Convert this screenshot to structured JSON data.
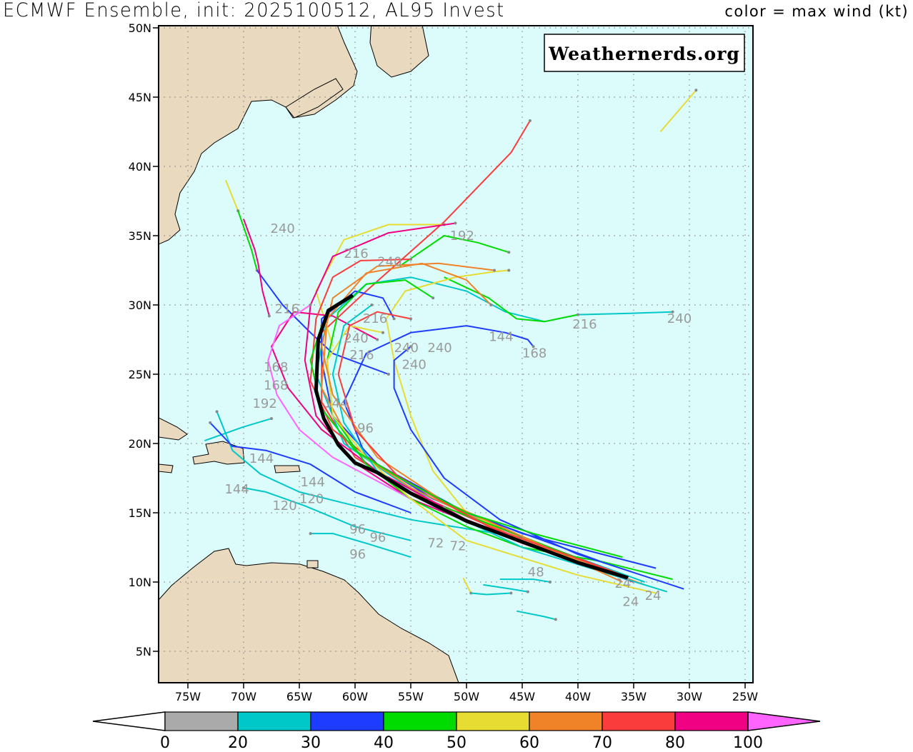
{
  "header": {
    "title": "ECMWF Ensemble, init: 2025100512, AL95 Invest",
    "subtitle": "color = max wind (kt)"
  },
  "watermark": "Weathernerds.org",
  "map": {
    "lat_labels": [
      "50N",
      "45N",
      "40N",
      "35N",
      "30N",
      "25N",
      "20N",
      "15N",
      "10N",
      "5N"
    ],
    "lat_values": [
      50,
      45,
      40,
      35,
      30,
      25,
      20,
      15,
      10,
      5
    ],
    "lon_labels": [
      "75W",
      "70W",
      "65W",
      "60W",
      "55W",
      "50W",
      "45W",
      "40W",
      "35W",
      "30W",
      "25W"
    ],
    "lon_values": [
      -75,
      -70,
      -65,
      -60,
      -55,
      -50,
      -45,
      -40,
      -35,
      -30,
      -25
    ],
    "extent": {
      "lon": [
        -77.6,
        -24.3
      ],
      "lat": [
        2.5,
        49.9
      ]
    },
    "ocean_color": "#dcfcfc",
    "land_color": "#e8d9bf",
    "grid": "dotted"
  },
  "colorbar": {
    "labels": [
      "0",
      "20",
      "30",
      "40",
      "50",
      "60",
      "70",
      "80",
      "100"
    ],
    "colors": [
      "#aaaaaa",
      "#00c8c8",
      "#1e3cff",
      "#00dc00",
      "#e6dc32",
      "#f08228",
      "#fa3c3c",
      "#f00082"
    ],
    "under_color": "#ffffff",
    "over_color": "#ff64ff"
  },
  "mean_track": {
    "color": "#000000",
    "points": [
      [
        -35.5,
        10.3
      ],
      [
        -40,
        11.4
      ],
      [
        -45,
        12.9
      ],
      [
        -50,
        14.4
      ],
      [
        -55,
        16.4
      ],
      [
        -58,
        17.9
      ],
      [
        -60,
        18.6
      ],
      [
        -61.5,
        19.9
      ],
      [
        -62.8,
        21.8
      ],
      [
        -63.5,
        23.8
      ],
      [
        -63.3,
        27.5
      ],
      [
        -62.4,
        29.6
      ],
      [
        -60.2,
        30.7
      ]
    ]
  },
  "tracks": [
    {
      "color": "#fa3c3c",
      "points": [
        [
          -35.5,
          10.3
        ],
        [
          -45,
          13
        ],
        [
          -55,
          16.5
        ],
        [
          -60,
          19
        ],
        [
          -63,
          23
        ],
        [
          -63,
          28
        ],
        [
          -59,
          31
        ],
        [
          -52,
          36
        ],
        [
          -46,
          41
        ],
        [
          -44.3,
          43.3
        ]
      ]
    },
    {
      "color": "#e6dc32",
      "points": [
        [
          -32.6,
          42.5
        ],
        [
          -29.4,
          45.5
        ]
      ]
    },
    {
      "color": "#e6dc32",
      "points": [
        [
          -71.6,
          39
        ],
        [
          -70.5,
          36.8
        ]
      ]
    },
    {
      "color": "#00dc00",
      "points": [
        [
          -70.5,
          36.8
        ],
        [
          -69.3,
          34
        ],
        [
          -68.8,
          32.5
        ]
      ]
    },
    {
      "color": "#1e3cff",
      "points": [
        [
          -68.8,
          32.5
        ],
        [
          -66.5,
          30
        ],
        [
          -64,
          28
        ],
        [
          -62,
          26.5
        ],
        [
          -57,
          25
        ]
      ]
    },
    {
      "color": "#00c8c8",
      "points": [
        [
          -34,
          10
        ],
        [
          -45,
          13.2
        ],
        [
          -55,
          16.7
        ],
        [
          -61,
          20
        ],
        [
          -63.5,
          25
        ],
        [
          -62.5,
          29
        ],
        [
          -59,
          31.5
        ],
        [
          -55,
          32
        ],
        [
          -50,
          31
        ],
        [
          -46.5,
          29.5
        ],
        [
          -43,
          28.8
        ],
        [
          -40,
          29.3
        ],
        [
          -35,
          29.4
        ],
        [
          -31.5,
          29.5
        ]
      ]
    },
    {
      "color": "#00dc00",
      "points": [
        [
          -52,
          32
        ],
        [
          -48,
          30.5
        ],
        [
          -45.5,
          29
        ],
        [
          -43,
          28.8
        ],
        [
          -40,
          29.3
        ]
      ]
    },
    {
      "color": "#1e3cff",
      "points": [
        [
          -33,
          11
        ],
        [
          -45,
          13.5
        ],
        [
          -53,
          16
        ],
        [
          -59,
          19
        ],
        [
          -61,
          23
        ],
        [
          -59,
          26.5
        ],
        [
          -55,
          28
        ],
        [
          -50,
          28.5
        ],
        [
          -46.5,
          28
        ],
        [
          -44.5,
          27.5
        ],
        [
          -44,
          27
        ]
      ]
    },
    {
      "color": "#e6dc32",
      "points": [
        [
          -35,
          10
        ],
        [
          -40,
          11.6
        ],
        [
          -45,
          13.2
        ],
        [
          -50,
          15
        ],
        [
          -53,
          18
        ],
        [
          -55,
          22
        ],
        [
          -56.5,
          26
        ],
        [
          -57.2,
          29
        ],
        [
          -55.5,
          31
        ],
        [
          -51,
          32
        ],
        [
          -47.5,
          32.4
        ],
        [
          -46.2,
          32.5
        ]
      ]
    },
    {
      "color": "#00dc00",
      "points": [
        [
          -56,
          32.8
        ],
        [
          -52,
          35
        ],
        [
          -49,
          34.5
        ],
        [
          -46.2,
          33.8
        ]
      ]
    },
    {
      "color": "#e6dc32",
      "points": [
        [
          -62,
          27
        ],
        [
          -63.5,
          31
        ],
        [
          -61,
          34.7
        ],
        [
          -57,
          35.8
        ],
        [
          -52,
          35.8
        ]
      ]
    },
    {
      "color": "#f00082",
      "points": [
        [
          -35,
          10
        ],
        [
          -45,
          12.8
        ],
        [
          -55,
          16
        ],
        [
          -60,
          18.6
        ],
        [
          -63.5,
          22
        ],
        [
          -64.5,
          26
        ],
        [
          -64,
          30
        ],
        [
          -62,
          33.5
        ],
        [
          -57,
          35.2
        ],
        [
          -51,
          35.9
        ]
      ]
    },
    {
      "color": "#00c8c8",
      "points": [
        [
          -45,
          13.2
        ],
        [
          -55,
          14.5
        ],
        [
          -60,
          15.5
        ],
        [
          -65,
          16.5
        ],
        [
          -68.5,
          17.8
        ],
        [
          -71,
          19.5
        ],
        [
          -72.4,
          22.3
        ]
      ]
    },
    {
      "color": "#00c8c8",
      "points": [
        [
          -73.5,
          20.2
        ],
        [
          -70,
          21.2
        ],
        [
          -67.5,
          21.8
        ]
      ]
    },
    {
      "color": "#1e3cff",
      "points": [
        [
          -55,
          15
        ],
        [
          -60,
          16.5
        ],
        [
          -64,
          18.5
        ],
        [
          -68,
          19.5
        ],
        [
          -71,
          19.8
        ],
        [
          -73,
          21.5
        ]
      ]
    },
    {
      "color": "#00c8c8",
      "points": [
        [
          -55,
          13
        ],
        [
          -60,
          14
        ],
        [
          -64.5,
          15.5
        ],
        [
          -68,
          16.5
        ],
        [
          -70,
          16.8
        ]
      ]
    },
    {
      "color": "#00c8c8",
      "points": [
        [
          -55,
          11.8
        ],
        [
          -59,
          12.8
        ],
        [
          -62,
          13.5
        ],
        [
          -64,
          13.5
        ]
      ]
    },
    {
      "color": "#e6dc32",
      "points": [
        [
          -50.3,
          10.3
        ],
        [
          -49.6,
          9.2
        ]
      ]
    },
    {
      "color": "#00c8c8",
      "points": [
        [
          -49.6,
          9.2
        ],
        [
          -48.2,
          9.1
        ],
        [
          -46,
          9.2
        ]
      ]
    },
    {
      "color": "#00c8c8",
      "points": [
        [
          -48.5,
          9.8
        ],
        [
          -46,
          9.5
        ],
        [
          -44.5,
          9.3
        ]
      ]
    },
    {
      "color": "#00c8c8",
      "points": [
        [
          -45.5,
          7.9
        ],
        [
          -43,
          7.5
        ],
        [
          -42,
          7.3
        ]
      ]
    },
    {
      "color": "#00c8c8",
      "points": [
        [
          -47,
          10.2
        ],
        [
          -44,
          10.2
        ],
        [
          -42.5,
          10
        ]
      ]
    },
    {
      "color": "#f00082",
      "points": [
        [
          -40,
          11.5
        ],
        [
          -50,
          14.5
        ],
        [
          -58,
          18
        ],
        [
          -63,
          21
        ],
        [
          -66,
          24
        ],
        [
          -67.5,
          27
        ],
        [
          -65.5,
          29.5
        ],
        [
          -62,
          29.2
        ],
        [
          -58,
          27.5
        ]
      ]
    },
    {
      "color": "#1e3cff",
      "points": [
        [
          -38,
          11.5
        ],
        [
          -50,
          15
        ],
        [
          -58,
          18.5
        ],
        [
          -62,
          22
        ],
        [
          -63,
          26
        ],
        [
          -63,
          29
        ],
        [
          -60,
          31
        ],
        [
          -57.5,
          30.5
        ],
        [
          -56.5,
          29
        ]
      ]
    },
    {
      "color": "#fa3c3c",
      "points": [
        [
          -36,
          10.5
        ],
        [
          -50,
          14.8
        ],
        [
          -58,
          18.5
        ],
        [
          -62,
          21
        ],
        [
          -64,
          24.5
        ],
        [
          -63.5,
          29
        ],
        [
          -62,
          32
        ],
        [
          -59.5,
          33.2
        ],
        [
          -55,
          33.3
        ]
      ]
    },
    {
      "color": "#f08228",
      "points": [
        [
          -34,
          9.8
        ],
        [
          -45,
          13
        ],
        [
          -55,
          16.8
        ],
        [
          -60,
          19.5
        ],
        [
          -63,
          24
        ],
        [
          -62.5,
          29
        ],
        [
          -59,
          32.3
        ],
        [
          -54,
          33
        ],
        [
          -50,
          31.8
        ],
        [
          -47.8,
          30
        ]
      ]
    },
    {
      "color": "#ff64ff",
      "points": [
        [
          -55,
          16
        ],
        [
          -62,
          19
        ],
        [
          -65,
          21
        ],
        [
          -67,
          23.5
        ],
        [
          -67.8,
          26
        ],
        [
          -66.8,
          28.5
        ],
        [
          -64,
          30
        ]
      ]
    },
    {
      "color": "#f00082",
      "points": [
        [
          -70,
          36.2
        ],
        [
          -69,
          34
        ],
        [
          -68.7,
          33
        ],
        [
          -68.3,
          31
        ],
        [
          -67.7,
          29.2
        ]
      ]
    },
    {
      "color": "#00dc00",
      "points": [
        [
          -31.5,
          10.2
        ],
        [
          -38,
          11.5
        ],
        [
          -45,
          12.5
        ],
        [
          -50,
          14
        ],
        [
          -55,
          16
        ],
        [
          -59,
          18.5
        ],
        [
          -62,
          22
        ],
        [
          -62.5,
          26
        ],
        [
          -61.5,
          29.5
        ],
        [
          -59,
          31.5
        ],
        [
          -55.5,
          31.8
        ],
        [
          -53,
          30.5
        ]
      ]
    },
    {
      "color": "#00dc00",
      "points": [
        [
          -40,
          11.7
        ],
        [
          -46,
          13.6
        ],
        [
          -52,
          15.4
        ]
      ]
    },
    {
      "color": "#e6dc32",
      "points": [
        [
          -33,
          9.2
        ],
        [
          -40,
          10.5
        ],
        [
          -50,
          13
        ],
        [
          -55,
          16
        ],
        [
          -59,
          19
        ],
        [
          -62,
          22
        ],
        [
          -62.5,
          26
        ],
        [
          -60.5,
          28.5
        ],
        [
          -57.5,
          28
        ]
      ]
    },
    {
      "color": "#1e3cff",
      "points": [
        [
          -30.5,
          9.5
        ],
        [
          -40,
          12
        ],
        [
          -47,
          14.5
        ],
        [
          -52,
          17.5
        ],
        [
          -55,
          21
        ],
        [
          -56.5,
          24
        ],
        [
          -56.5,
          26
        ],
        [
          -55,
          27
        ]
      ]
    },
    {
      "color": "#00c8c8",
      "points": [
        [
          -32,
          9.3
        ],
        [
          -45,
          12.5
        ],
        [
          -53,
          15.5
        ],
        [
          -58,
          18
        ],
        [
          -61,
          21.5
        ],
        [
          -62,
          25
        ],
        [
          -61,
          28.5
        ],
        [
          -58.5,
          30
        ]
      ]
    },
    {
      "color": "#f08228",
      "points": [
        [
          -36,
          10
        ],
        [
          -45,
          13.3
        ],
        [
          -52,
          15.8
        ],
        [
          -58,
          19
        ],
        [
          -62,
          23.5
        ],
        [
          -63,
          27
        ],
        [
          -62,
          30.5
        ],
        [
          -58,
          32.8
        ],
        [
          -52.5,
          33
        ],
        [
          -47.5,
          32.5
        ]
      ]
    },
    {
      "color": "#fa3c3c",
      "points": [
        [
          -37,
          10.8
        ],
        [
          -48,
          14
        ],
        [
          -56,
          17.5
        ],
        [
          -60,
          21
        ],
        [
          -61.5,
          25
        ],
        [
          -60.5,
          28.5
        ],
        [
          -58,
          29.5
        ],
        [
          -55,
          29
        ]
      ]
    },
    {
      "color": "#00dc00",
      "points": [
        [
          -36,
          11.8
        ],
        [
          -44,
          13.5
        ],
        [
          -50,
          15
        ],
        [
          -56,
          17.5
        ],
        [
          -60,
          19.5
        ],
        [
          -63,
          22.5
        ],
        [
          -64,
          26
        ],
        [
          -63,
          28.5
        ]
      ]
    }
  ],
  "lead_labels": [
    [
      "240",
      -67.6,
      35.2
    ],
    [
      "192",
      -51.5,
      34.7
    ],
    [
      "216",
      -61,
      33.4
    ],
    [
      "240",
      -58,
      32.8
    ],
    [
      "144",
      -48,
      27.4
    ],
    [
      "168",
      -45,
      26.2
    ],
    [
      "216",
      -40.5,
      28.3
    ],
    [
      "240",
      -32,
      28.7
    ],
    [
      "216",
      -67.2,
      29.4
    ],
    [
      "216",
      -59.3,
      28.7
    ],
    [
      "240",
      -61,
      27.3
    ],
    [
      "216",
      -60.5,
      26.9
    ],
    [
      "240",
      -56.5,
      26.6
    ],
    [
      "240",
      -53.5,
      26.6
    ],
    [
      "240",
      -55.8,
      25.8
    ],
    [
      "168",
      -68.2,
      25.2
    ],
    [
      "168",
      -68.2,
      24.3
    ],
    [
      "192",
      -69.2,
      23
    ],
    [
      "144",
      -62.8,
      22.6
    ],
    [
      "96",
      -59.8,
      20.8
    ],
    [
      "144",
      -69.5,
      18.6
    ],
    [
      "144",
      -71.7,
      16.4
    ],
    [
      "144",
      -64.9,
      16.9
    ],
    [
      "120",
      -65,
      15.7
    ],
    [
      "120",
      -66.9,
      15.2
    ],
    [
      "96",
      -60.5,
      13.5
    ],
    [
      "96",
      -59.2,
      12.9
    ],
    [
      "96",
      -60.5,
      11.7
    ],
    [
      "72",
      -53.5,
      12.5
    ],
    [
      "72",
      -51.5,
      12.3
    ],
    [
      "48",
      -44.5,
      10.4
    ],
    [
      "24",
      -36.7,
      9.6
    ],
    [
      "24",
      -36,
      9.1
    ],
    [
      "24",
      -34,
      8.7
    ]
  ]
}
